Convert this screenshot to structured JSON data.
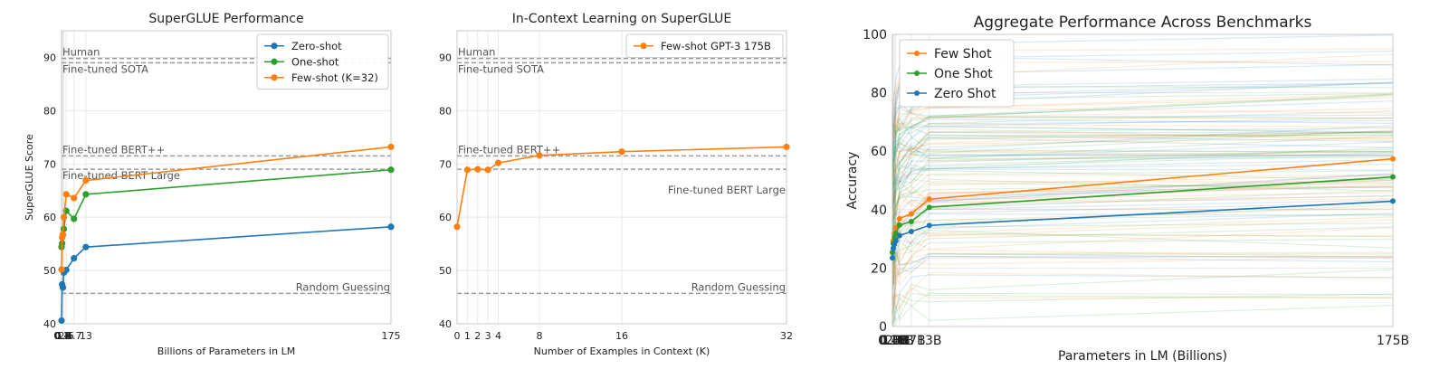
{
  "chart_data": [
    {
      "type": "line",
      "title": "SuperGLUE Performance",
      "xlabel": "Billions of Parameters in LM",
      "ylabel": "SuperGLUE Score",
      "x": [
        0.1,
        0.4,
        0.8,
        1.3,
        2.6,
        6.7,
        13,
        175
      ],
      "x_tick_labels": [
        "0.1",
        "0.4",
        "0.8",
        "1.3",
        "2.6",
        "6.7",
        "13",
        "175"
      ],
      "ylim": [
        40,
        95
      ],
      "y_ticks": [
        40,
        50,
        60,
        70,
        80,
        90
      ],
      "legend_position": "top-right",
      "series": [
        {
          "name": "Zero-shot",
          "color": "#1f77b4",
          "values": [
            40.6,
            47.4,
            46.8,
            49.6,
            50.1,
            52.3,
            54.4,
            58.2
          ]
        },
        {
          "name": "One-shot",
          "color": "#2ca02c",
          "values": [
            54.4,
            55.1,
            56.7,
            57.8,
            61.2,
            59.7,
            64.3,
            68.9
          ]
        },
        {
          "name": "Few-shot (K=32)",
          "color": "#ff7f0e",
          "values": [
            50.2,
            56.2,
            56.8,
            60.0,
            64.3,
            63.6,
            66.9,
            73.2
          ]
        }
      ],
      "reference_lines": [
        {
          "label": "Human",
          "value": 89.8
        },
        {
          "label": "Fine-tuned SOTA",
          "value": 89.0
        },
        {
          "label": "Fine-tuned BERT++",
          "value": 71.5
        },
        {
          "label": "Fine-tuned BERT Large",
          "value": 69.0
        },
        {
          "label": "Random Guessing",
          "value": 45.7
        }
      ]
    },
    {
      "type": "line",
      "title": "In-Context Learning on SuperGLUE",
      "xlabel": "Number of Examples in Context (K)",
      "ylabel": "",
      "x": [
        0,
        1,
        2,
        3,
        4,
        8,
        16,
        32
      ],
      "x_tick_labels": [
        "0",
        "1",
        "2",
        "3",
        "4",
        "8",
        "16",
        "32"
      ],
      "ylim": [
        40,
        95
      ],
      "y_ticks": [
        40,
        50,
        60,
        70,
        80,
        90
      ],
      "legend_position": "top-right",
      "series": [
        {
          "name": "Few-shot GPT-3 175B",
          "color": "#ff7f0e",
          "values": [
            58.2,
            68.9,
            69.0,
            68.9,
            70.2,
            71.6,
            72.3,
            73.2
          ]
        }
      ],
      "reference_lines": [
        {
          "label": "Human",
          "value": 89.8
        },
        {
          "label": "Fine-tuned SOTA",
          "value": 89.0
        },
        {
          "label": "Fine-tuned BERT++",
          "value": 71.5
        },
        {
          "label": "Fine-tuned BERT Large",
          "value": 69.0
        },
        {
          "label": "Random Guessing",
          "value": 45.7
        }
      ]
    },
    {
      "type": "line",
      "title": "Aggregate Performance Across Benchmarks",
      "xlabel": "Parameters in LM (Billions)",
      "ylabel": "Accuracy",
      "x": [
        0.1,
        0.4,
        0.8,
        1.3,
        2.6,
        6.7,
        13,
        175
      ],
      "x_tick_labels": [
        "0.1B",
        "0.4B",
        "0.8B",
        "1.3B",
        "2.6B",
        "6.7B",
        "13B",
        "175B"
      ],
      "ylim": [
        0,
        100
      ],
      "y_ticks": [
        0,
        20,
        40,
        60,
        80,
        100
      ],
      "legend_position": "top-left",
      "series": [
        {
          "name": "Few Shot",
          "color": "#ff7f0e",
          "values": [
            25.3,
            29.3,
            31.7,
            33.7,
            36.9,
            38.6,
            43.6,
            57.4
          ]
        },
        {
          "name": "One Shot",
          "color": "#2ca02c",
          "values": [
            25.4,
            28.4,
            30.4,
            31.9,
            34.7,
            35.9,
            40.8,
            51.2
          ]
        },
        {
          "name": "Zero Shot",
          "color": "#1f77b4",
          "values": [
            23.5,
            26.8,
            28.1,
            29.3,
            31.1,
            32.5,
            34.6,
            42.9
          ]
        }
      ],
      "background_lines": {
        "count": 120,
        "colors": [
          "#1f77b4",
          "#2ca02c",
          "#ff7f0e"
        ]
      }
    }
  ]
}
